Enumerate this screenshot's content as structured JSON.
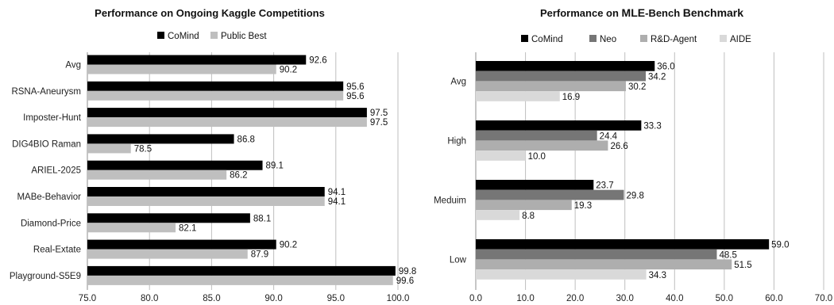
{
  "chart_data": [
    {
      "type": "bar",
      "orientation": "horizontal",
      "title": "Performance on Ongoing Kaggle Competitions",
      "categories": [
        "Avg",
        "RSNA-Aneurysm",
        "Imposter-Hunt",
        "DIG4BIO Raman",
        "ARIEL-2025",
        "MABe-Behavior",
        "Diamond-Price",
        "Real-Extate",
        "Playground-S5E9"
      ],
      "series": [
        {
          "name": "CoMind",
          "color": "#000000",
          "values": [
            92.6,
            95.6,
            97.5,
            86.8,
            89.1,
            94.1,
            88.1,
            90.2,
            99.8
          ]
        },
        {
          "name": "Public Best",
          "color": "#bfbfbf",
          "values": [
            90.2,
            95.6,
            97.5,
            78.5,
            86.2,
            94.1,
            82.1,
            87.9,
            99.6
          ]
        }
      ],
      "xlim": [
        75.0,
        100.0
      ],
      "xticks": [
        "75.0",
        "80.0",
        "85.0",
        "90.0",
        "95.0",
        "100.0"
      ],
      "grid": true,
      "legend_position": "top"
    },
    {
      "type": "bar",
      "orientation": "horizontal",
      "title": "Performance on MLE-Bench Benchmark",
      "title_parts": [
        {
          "text": "Performance on ",
          "emph": false
        },
        {
          "text": "MLE",
          "emph": true
        },
        {
          "text": "-Bench ",
          "emph": false
        },
        {
          "text": "Benchmark",
          "emph": true
        }
      ],
      "categories": [
        "Avg",
        "High",
        "Meduim",
        "Low"
      ],
      "series": [
        {
          "name": "CoMind",
          "color": "#000000",
          "values": [
            36.0,
            33.3,
            23.7,
            59.0
          ]
        },
        {
          "name": "Neo",
          "color": "#767676",
          "values": [
            34.2,
            24.4,
            29.8,
            48.5
          ]
        },
        {
          "name": "R&D-Agent",
          "color": "#aeaeae",
          "values": [
            30.2,
            26.6,
            19.3,
            51.5
          ]
        },
        {
          "name": "AIDE",
          "color": "#d9d9d9",
          "values": [
            16.9,
            10.0,
            8.8,
            34.3
          ]
        }
      ],
      "xlim": [
        0.0,
        70.0
      ],
      "xticks": [
        "0.0",
        "10.0",
        "20.0",
        "30.0",
        "40.0",
        "50.0",
        "60.0",
        "70.0"
      ],
      "grid": true,
      "legend_position": "top"
    }
  ]
}
